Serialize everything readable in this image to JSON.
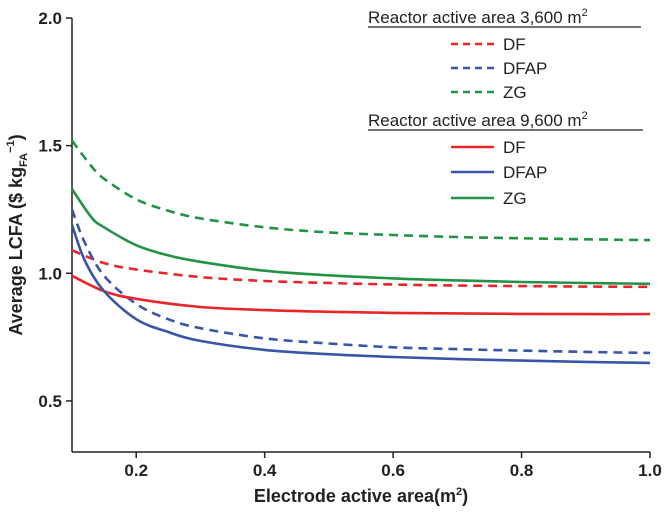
{
  "chart_data": {
    "type": "line",
    "xlabel": "Electrode active area(m",
    "xlabel_sup": "2",
    "xlabel_close": ")",
    "ylabel": "Average LCFA ($ kg",
    "ylabel_sub": "FA",
    "ylabel_sup": "−1",
    "ylabel_close": ")",
    "xlim": [
      0.1,
      1.0
    ],
    "ylim": [
      0.3,
      2.0
    ],
    "x_ticks": [
      0.2,
      0.4,
      0.6,
      0.8,
      1.0
    ],
    "x_tick_labels": [
      "0.2",
      "0.4",
      "0.6",
      "0.8",
      "1.0"
    ],
    "y_ticks": [
      0.5,
      1.0,
      1.5,
      2.0
    ],
    "y_tick_labels": [
      "0.5",
      "1.0",
      "1.5",
      "2.0"
    ],
    "grid": false,
    "legend_placement": "top-right",
    "legend_groups": [
      {
        "heading": "Reactor active area 3,600 m",
        "heading_sup": "2",
        "style": "dashed",
        "entries": [
          "DF",
          "DFAP",
          "ZG"
        ]
      },
      {
        "heading": "Reactor active area 9,600 m",
        "heading_sup": "2",
        "style": "solid",
        "entries": [
          "DF",
          "DFAP",
          "ZG"
        ]
      }
    ],
    "series": [
      {
        "name": "DF",
        "group": "Reactor active area 3,600 m2",
        "dash": true,
        "color": "#e8262a",
        "x": [
          0.1,
          0.15,
          0.2,
          0.3,
          0.4,
          0.5,
          0.6,
          0.7,
          0.8,
          0.9,
          1.0
        ],
        "y": [
          1.09,
          1.04,
          1.015,
          0.985,
          0.97,
          0.962,
          0.956,
          0.952,
          0.95,
          0.948,
          0.947
        ]
      },
      {
        "name": "DFAP",
        "group": "Reactor active area 3,600 m2",
        "dash": true,
        "color": "#3a55a8",
        "x": [
          0.1,
          0.12,
          0.15,
          0.2,
          0.25,
          0.3,
          0.4,
          0.5,
          0.6,
          0.7,
          0.8,
          0.9,
          1.0
        ],
        "y": [
          1.25,
          1.12,
          0.99,
          0.88,
          0.82,
          0.785,
          0.745,
          0.725,
          0.71,
          0.703,
          0.697,
          0.692,
          0.688
        ]
      },
      {
        "name": "ZG",
        "group": "Reactor active area 3,600 m2",
        "dash": true,
        "color": "#239247",
        "x": [
          0.1,
          0.13,
          0.15,
          0.2,
          0.25,
          0.3,
          0.4,
          0.5,
          0.6,
          0.7,
          0.8,
          0.9,
          1.0
        ],
        "y": [
          1.52,
          1.42,
          1.37,
          1.29,
          1.245,
          1.215,
          1.18,
          1.16,
          1.15,
          1.142,
          1.137,
          1.133,
          1.13
        ]
      },
      {
        "name": "DF",
        "group": "Reactor active area 9,600 m2",
        "dash": false,
        "color": "#e8262a",
        "x": [
          0.1,
          0.15,
          0.2,
          0.3,
          0.4,
          0.5,
          0.6,
          0.7,
          0.8,
          0.9,
          1.0
        ],
        "y": [
          0.99,
          0.93,
          0.9,
          0.868,
          0.856,
          0.849,
          0.845,
          0.843,
          0.841,
          0.84,
          0.84
        ]
      },
      {
        "name": "DFAP",
        "group": "Reactor active area 9,600 m2",
        "dash": false,
        "color": "#3a55a8",
        "x": [
          0.1,
          0.12,
          0.15,
          0.2,
          0.25,
          0.3,
          0.4,
          0.5,
          0.6,
          0.7,
          0.8,
          0.9,
          1.0
        ],
        "y": [
          1.19,
          1.05,
          0.93,
          0.82,
          0.77,
          0.735,
          0.7,
          0.683,
          0.672,
          0.664,
          0.658,
          0.653,
          0.649
        ]
      },
      {
        "name": "ZG",
        "group": "Reactor active area 9,600 m2",
        "dash": false,
        "color": "#239247",
        "x": [
          0.1,
          0.13,
          0.15,
          0.2,
          0.25,
          0.3,
          0.4,
          0.5,
          0.6,
          0.7,
          0.8,
          0.9,
          1.0
        ],
        "y": [
          1.33,
          1.22,
          1.18,
          1.11,
          1.07,
          1.045,
          1.01,
          0.992,
          0.98,
          0.972,
          0.966,
          0.962,
          0.959
        ]
      }
    ]
  }
}
